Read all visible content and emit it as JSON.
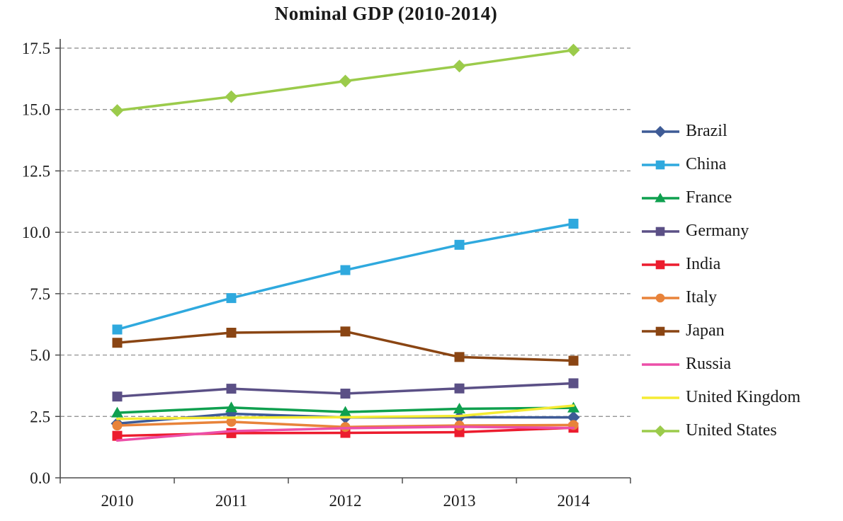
{
  "chart_data": {
    "type": "line",
    "title": "Nominal GDP (2010-2014)",
    "categories": [
      "2010",
      "2011",
      "2012",
      "2013",
      "2014"
    ],
    "xlabel": "",
    "ylabel": "",
    "ylim": [
      0,
      17.5
    ],
    "ytick_step": 2.5,
    "y_tick_labels": [
      "0.0",
      "2.5",
      "5.0",
      "7.5",
      "10.0",
      "12.5",
      "15.0",
      "17.5"
    ],
    "grid": "horizontal-dashed",
    "legend_position": "right",
    "axis_color": "#4d4d4d",
    "grid_color": "#888888",
    "series": [
      {
        "name": "Brazil",
        "color": "#3E5B96",
        "marker": "diamond",
        "values": [
          2.21,
          2.61,
          2.46,
          2.47,
          2.46
        ]
      },
      {
        "name": "China",
        "color": "#2FA9DE",
        "marker": "square",
        "values": [
          6.04,
          7.32,
          8.46,
          9.49,
          10.35
        ]
      },
      {
        "name": "France",
        "color": "#0FA04F",
        "marker": "triangle",
        "values": [
          2.65,
          2.86,
          2.68,
          2.81,
          2.85
        ]
      },
      {
        "name": "Germany",
        "color": "#5B5086",
        "marker": "square",
        "values": [
          3.31,
          3.63,
          3.43,
          3.64,
          3.85
        ]
      },
      {
        "name": "India",
        "color": "#EC1C2E",
        "marker": "square",
        "values": [
          1.71,
          1.82,
          1.83,
          1.86,
          2.04
        ]
      },
      {
        "name": "Italy",
        "color": "#E8833A",
        "marker": "circle",
        "values": [
          2.13,
          2.28,
          2.07,
          2.13,
          2.15
        ]
      },
      {
        "name": "Japan",
        "color": "#8A4513",
        "marker": "square",
        "values": [
          5.5,
          5.91,
          5.96,
          4.92,
          4.77
        ]
      },
      {
        "name": "Russia",
        "color": "#EC4FA8",
        "marker": "none",
        "values": [
          1.52,
          1.9,
          2.02,
          2.08,
          2.03
        ]
      },
      {
        "name": "United Kingdom",
        "color": "#F5EB33",
        "marker": "none",
        "values": [
          2.4,
          2.45,
          2.47,
          2.52,
          2.94
        ]
      },
      {
        "name": "United States",
        "color": "#9BCB4B",
        "marker": "diamond",
        "values": [
          14.96,
          15.52,
          16.16,
          16.77,
          17.42
        ]
      }
    ]
  }
}
